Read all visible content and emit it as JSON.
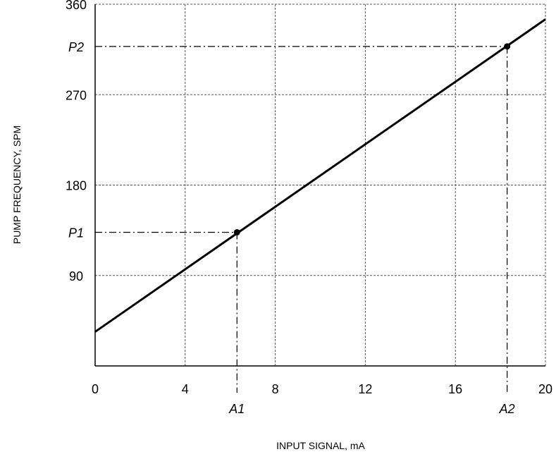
{
  "chart_data": {
    "type": "line",
    "xlabel": "INPUT SIGNAL, mA",
    "ylabel": "PUMP FREQUENCY, SPM",
    "xlim": [
      0,
      20
    ],
    "ylim": [
      0,
      360
    ],
    "x_ticks": [
      0,
      4,
      8,
      12,
      16,
      20
    ],
    "x_tick_labels": [
      "0",
      "4",
      "8",
      "12",
      "16",
      "20"
    ],
    "y_ticks": [
      90,
      180,
      270,
      360
    ],
    "y_tick_labels": [
      "90",
      "180",
      "270",
      "360"
    ],
    "grid": true,
    "series": [
      {
        "x": [
          0,
          20
        ],
        "y": [
          34,
          345
        ]
      }
    ],
    "reference_points": [
      {
        "x_label": "A1",
        "y_label": "P1",
        "x": 6.3,
        "y": 133
      },
      {
        "x_label": "A2",
        "y_label": "P2",
        "x": 18.3,
        "y": 318
      }
    ],
    "colors": {
      "line": "#000000",
      "grid": "#555555",
      "axis": "#000000"
    }
  }
}
